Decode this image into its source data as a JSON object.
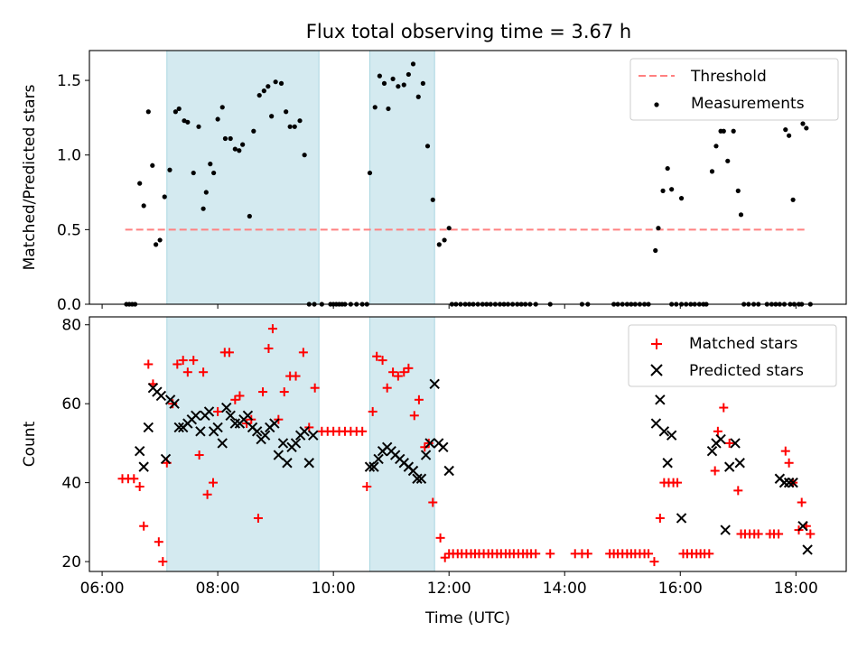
{
  "figure": {
    "title": "Flux total observing time = 3.67 h",
    "xlabel": "Time (UTC)",
    "x_ticks": [
      "06:00",
      "08:00",
      "10:00",
      "12:00",
      "14:00",
      "16:00",
      "18:00"
    ],
    "x_tick_hours": [
      6,
      8,
      10,
      12,
      14,
      16,
      18
    ],
    "xlim_hours": [
      5.78,
      18.87
    ]
  },
  "chart_data": [
    {
      "type": "scatter",
      "ylabel": "Matched/Predicted stars",
      "ylim": [
        0,
        1.7
      ],
      "yticks": [
        0.0,
        0.5,
        1.0,
        1.5
      ],
      "ytick_labels": [
        "0.0",
        "0.5",
        "1.0",
        "1.5"
      ],
      "shaded_intervals_hours": [
        [
          7.12,
          9.75
        ],
        [
          10.63,
          11.75
        ]
      ],
      "shade_color": "#d4eaf0",
      "legend": {
        "placement": "top-right",
        "entries": [
          "Threshold",
          "Measurements"
        ]
      },
      "threshold": {
        "name": "Threshold",
        "y": 0.5,
        "x_range_hours": [
          6.4,
          18.2
        ],
        "color": "#ff8080"
      },
      "series": [
        {
          "name": "Measurements",
          "marker": "dot",
          "color": "#000000",
          "x_hours": [
            6.42,
            6.47,
            6.52,
            6.57,
            6.65,
            6.72,
            6.8,
            6.87,
            6.93,
            7.0,
            7.08,
            7.17,
            7.27,
            7.33,
            7.42,
            7.48,
            7.58,
            7.67,
            7.75,
            7.8,
            7.87,
            7.93,
            8.0,
            8.08,
            8.13,
            8.22,
            8.3,
            8.37,
            8.43,
            8.55,
            8.62,
            8.72,
            8.8,
            8.87,
            8.93,
            9.0,
            9.1,
            9.18,
            9.25,
            9.33,
            9.42,
            9.5,
            9.58,
            9.67,
            9.8,
            10.63,
            10.72,
            10.8,
            10.88,
            10.95,
            11.03,
            11.12,
            11.22,
            11.3,
            11.38,
            11.47,
            11.55,
            11.63,
            11.72,
            11.83,
            11.92,
            12.0
          ],
          "y": [
            0,
            0,
            0,
            0,
            0.81,
            0.66,
            1.29,
            0.93,
            0.4,
            0.43,
            0.72,
            0.9,
            1.29,
            1.31,
            1.23,
            1.22,
            0.88,
            1.19,
            0.64,
            0.75,
            0.94,
            0.88,
            1.24,
            1.32,
            1.11,
            1.11,
            1.04,
            1.03,
            1.07,
            0.59,
            1.16,
            1.4,
            1.43,
            1.46,
            1.26,
            1.49,
            1.48,
            1.29,
            1.19,
            1.19,
            1.23,
            1.0,
            0,
            0,
            0,
            0.88,
            1.32,
            1.53,
            1.48,
            1.31,
            1.51,
            1.46,
            1.47,
            1.54,
            1.61,
            1.39,
            1.48,
            1.06,
            0.7,
            0.4,
            0.43,
            0.51
          ]
        },
        {
          "name": "Measurements (zero)",
          "marker": "dot",
          "color": "#000000",
          "x_hours": [
            9.95,
            10.0,
            10.05,
            10.1,
            10.15,
            10.2,
            10.3,
            10.4,
            10.5,
            10.58,
            12.05,
            12.12,
            12.2,
            12.28,
            12.35,
            12.42,
            12.5,
            12.58,
            12.65,
            12.72,
            12.8,
            12.88,
            12.95,
            13.02,
            13.1,
            13.18,
            13.25,
            13.32,
            13.4,
            13.5,
            13.75,
            14.3,
            14.4,
            14.85,
            14.92,
            15.0,
            15.08,
            15.15,
            15.22,
            15.3,
            15.38,
            15.45,
            15.85,
            15.93,
            16.02,
            16.1,
            16.18,
            16.25,
            16.33,
            16.4,
            16.45,
            17.1,
            17.18,
            17.27,
            17.35,
            17.5,
            17.58,
            17.65,
            17.72,
            17.8,
            17.9,
            17.97,
            18.05,
            18.1,
            18.25
          ]
        },
        {
          "name": "Measurements (late)",
          "marker": "dot",
          "color": "#000000",
          "x_hours": [
            15.57,
            15.62,
            15.7,
            15.78,
            15.85,
            16.02,
            16.55,
            16.62,
            16.7,
            16.75,
            16.82,
            16.92,
            17.0,
            17.05,
            17.82,
            17.88,
            17.95,
            18.12,
            18.18
          ],
          "y": [
            0.36,
            0.51,
            0.76,
            0.91,
            0.77,
            0.71,
            0.89,
            1.06,
            1.16,
            1.16,
            0.96,
            1.16,
            0.76,
            0.6,
            1.17,
            1.13,
            0.7,
            1.21,
            1.18
          ]
        }
      ]
    },
    {
      "type": "scatter",
      "ylabel": "Count",
      "ylim": [
        17.5,
        82
      ],
      "yticks": [
        20,
        40,
        60,
        80
      ],
      "ytick_labels": [
        "20",
        "40",
        "60",
        "80"
      ],
      "shaded_intervals_hours": [
        [
          7.12,
          9.75
        ],
        [
          10.63,
          11.75
        ]
      ],
      "shade_color": "#d4eaf0",
      "legend": {
        "placement": "top-right",
        "entries": [
          "Matched stars",
          "Predicted stars"
        ]
      },
      "series": [
        {
          "name": "Matched stars",
          "marker": "plus",
          "color": "#ff0000",
          "x_hours": [
            6.35,
            6.45,
            6.55,
            6.65,
            6.72,
            6.8,
            6.88,
            6.98,
            7.05,
            7.12,
            7.22,
            7.3,
            7.4,
            7.48,
            7.58,
            7.68,
            7.75,
            7.82,
            7.92,
            8.0,
            8.12,
            8.2,
            8.3,
            8.38,
            8.5,
            8.58,
            8.7,
            8.78,
            8.88,
            8.95,
            9.05,
            9.15,
            9.25,
            9.35,
            9.48,
            9.58,
            9.68,
            9.8,
            9.9,
            10.0,
            10.1,
            10.2,
            10.3,
            10.4,
            10.5,
            10.58,
            10.68,
            10.75,
            10.85,
            10.93,
            11.03,
            11.12,
            11.22,
            11.3,
            11.4,
            11.48,
            11.58,
            11.65,
            11.72,
            11.85,
            11.93
          ],
          "y": [
            41,
            41,
            41,
            39,
            29,
            70,
            65,
            25,
            20,
            45,
            60,
            70,
            71,
            68,
            71,
            47,
            68,
            37,
            40,
            58,
            73,
            73,
            61,
            62,
            55,
            56,
            31,
            63,
            74,
            79,
            56,
            63,
            67,
            67,
            73,
            54,
            64,
            53,
            53,
            53,
            53,
            53,
            53,
            53,
            53,
            39,
            58,
            72,
            71,
            64,
            68,
            67,
            68,
            69,
            57,
            61,
            49,
            50,
            35,
            26,
            21
          ]
        },
        {
          "name": "Matched stars (flat)",
          "marker": "plus",
          "color": "#ff0000",
          "x_hours": [
            12.0,
            12.07,
            12.15,
            12.22,
            12.3,
            12.38,
            12.45,
            12.52,
            12.6,
            12.68,
            12.75,
            12.83,
            12.9,
            12.98,
            13.05,
            13.12,
            13.2,
            13.28,
            13.35,
            13.42,
            13.5,
            13.75,
            14.18,
            14.3,
            14.4,
            14.78,
            14.85,
            14.92,
            15.0,
            15.08,
            15.15,
            15.22,
            15.3,
            15.38,
            15.45,
            15.55,
            16.05,
            16.12,
            16.2,
            16.28,
            16.35,
            16.42,
            16.5,
            17.05,
            17.12,
            17.2,
            17.28,
            17.35,
            17.55,
            17.62,
            17.7,
            17.82,
            17.88,
            17.95,
            18.05,
            18.1,
            18.18,
            18.25
          ],
          "y": [
            22,
            22,
            22,
            22,
            22,
            22,
            22,
            22,
            22,
            22,
            22,
            22,
            22,
            22,
            22,
            22,
            22,
            22,
            22,
            22,
            22,
            22,
            22,
            22,
            22,
            22,
            22,
            22,
            22,
            22,
            22,
            22,
            22,
            22,
            22,
            20,
            22,
            22,
            22,
            22,
            22,
            22,
            22,
            27,
            27,
            27,
            27,
            27,
            27,
            27,
            27,
            48,
            45,
            40,
            28,
            35,
            29,
            27
          ]
        },
        {
          "name": "Matched stars (late)",
          "marker": "plus",
          "color": "#ff0000",
          "x_hours": [
            15.65,
            15.72,
            15.8,
            15.88,
            15.95,
            16.6,
            16.65,
            16.75,
            16.85,
            17.0
          ],
          "y": [
            31,
            40,
            40,
            40,
            40,
            43,
            53,
            59,
            50,
            38
          ]
        },
        {
          "name": "Predicted stars",
          "marker": "x",
          "color": "#000000",
          "x_hours": [
            6.65,
            6.72,
            6.8,
            6.88,
            6.95,
            7.02,
            7.1,
            7.18,
            7.25,
            7.33,
            7.4,
            7.48,
            7.55,
            7.62,
            7.7,
            7.78,
            7.85,
            7.93,
            8.0,
            8.08,
            8.15,
            8.22,
            8.3,
            8.38,
            8.45,
            8.52,
            8.6,
            8.68,
            8.75,
            8.82,
            8.9,
            8.98,
            9.05,
            9.13,
            9.2,
            9.28,
            9.35,
            9.43,
            9.5,
            9.58,
            9.65,
            10.63,
            10.7,
            10.78,
            10.85,
            10.93,
            11.0,
            11.07,
            11.15,
            11.22,
            11.3,
            11.38,
            11.45,
            11.52,
            11.6,
            11.67,
            11.75,
            11.82,
            11.9,
            12.0
          ],
          "y": [
            48,
            44,
            54,
            64,
            63,
            62,
            46,
            61,
            60,
            54,
            54,
            55,
            56,
            57,
            53,
            57,
            58,
            53,
            54,
            50,
            59,
            57,
            55,
            55,
            56,
            57,
            54,
            53,
            51,
            52,
            54,
            55,
            47,
            50,
            45,
            49,
            50,
            52,
            53,
            45,
            52,
            44,
            44,
            46,
            48,
            49,
            48,
            47,
            46,
            45,
            44,
            43,
            41,
            41,
            47,
            50,
            65,
            50,
            49,
            43
          ]
        },
        {
          "name": "Predicted stars (late)",
          "marker": "x",
          "color": "#000000",
          "x_hours": [
            15.58,
            15.65,
            15.72,
            15.78,
            15.85,
            16.02,
            16.55,
            16.62,
            16.7,
            16.78,
            16.85,
            16.95,
            17.03,
            17.72,
            17.8,
            17.88,
            17.95,
            18.12,
            18.2
          ],
          "y": [
            55,
            61,
            53,
            45,
            52,
            31,
            48,
            50,
            51,
            28,
            44,
            50,
            45,
            41,
            40,
            40,
            40,
            29,
            23
          ]
        }
      ]
    }
  ]
}
